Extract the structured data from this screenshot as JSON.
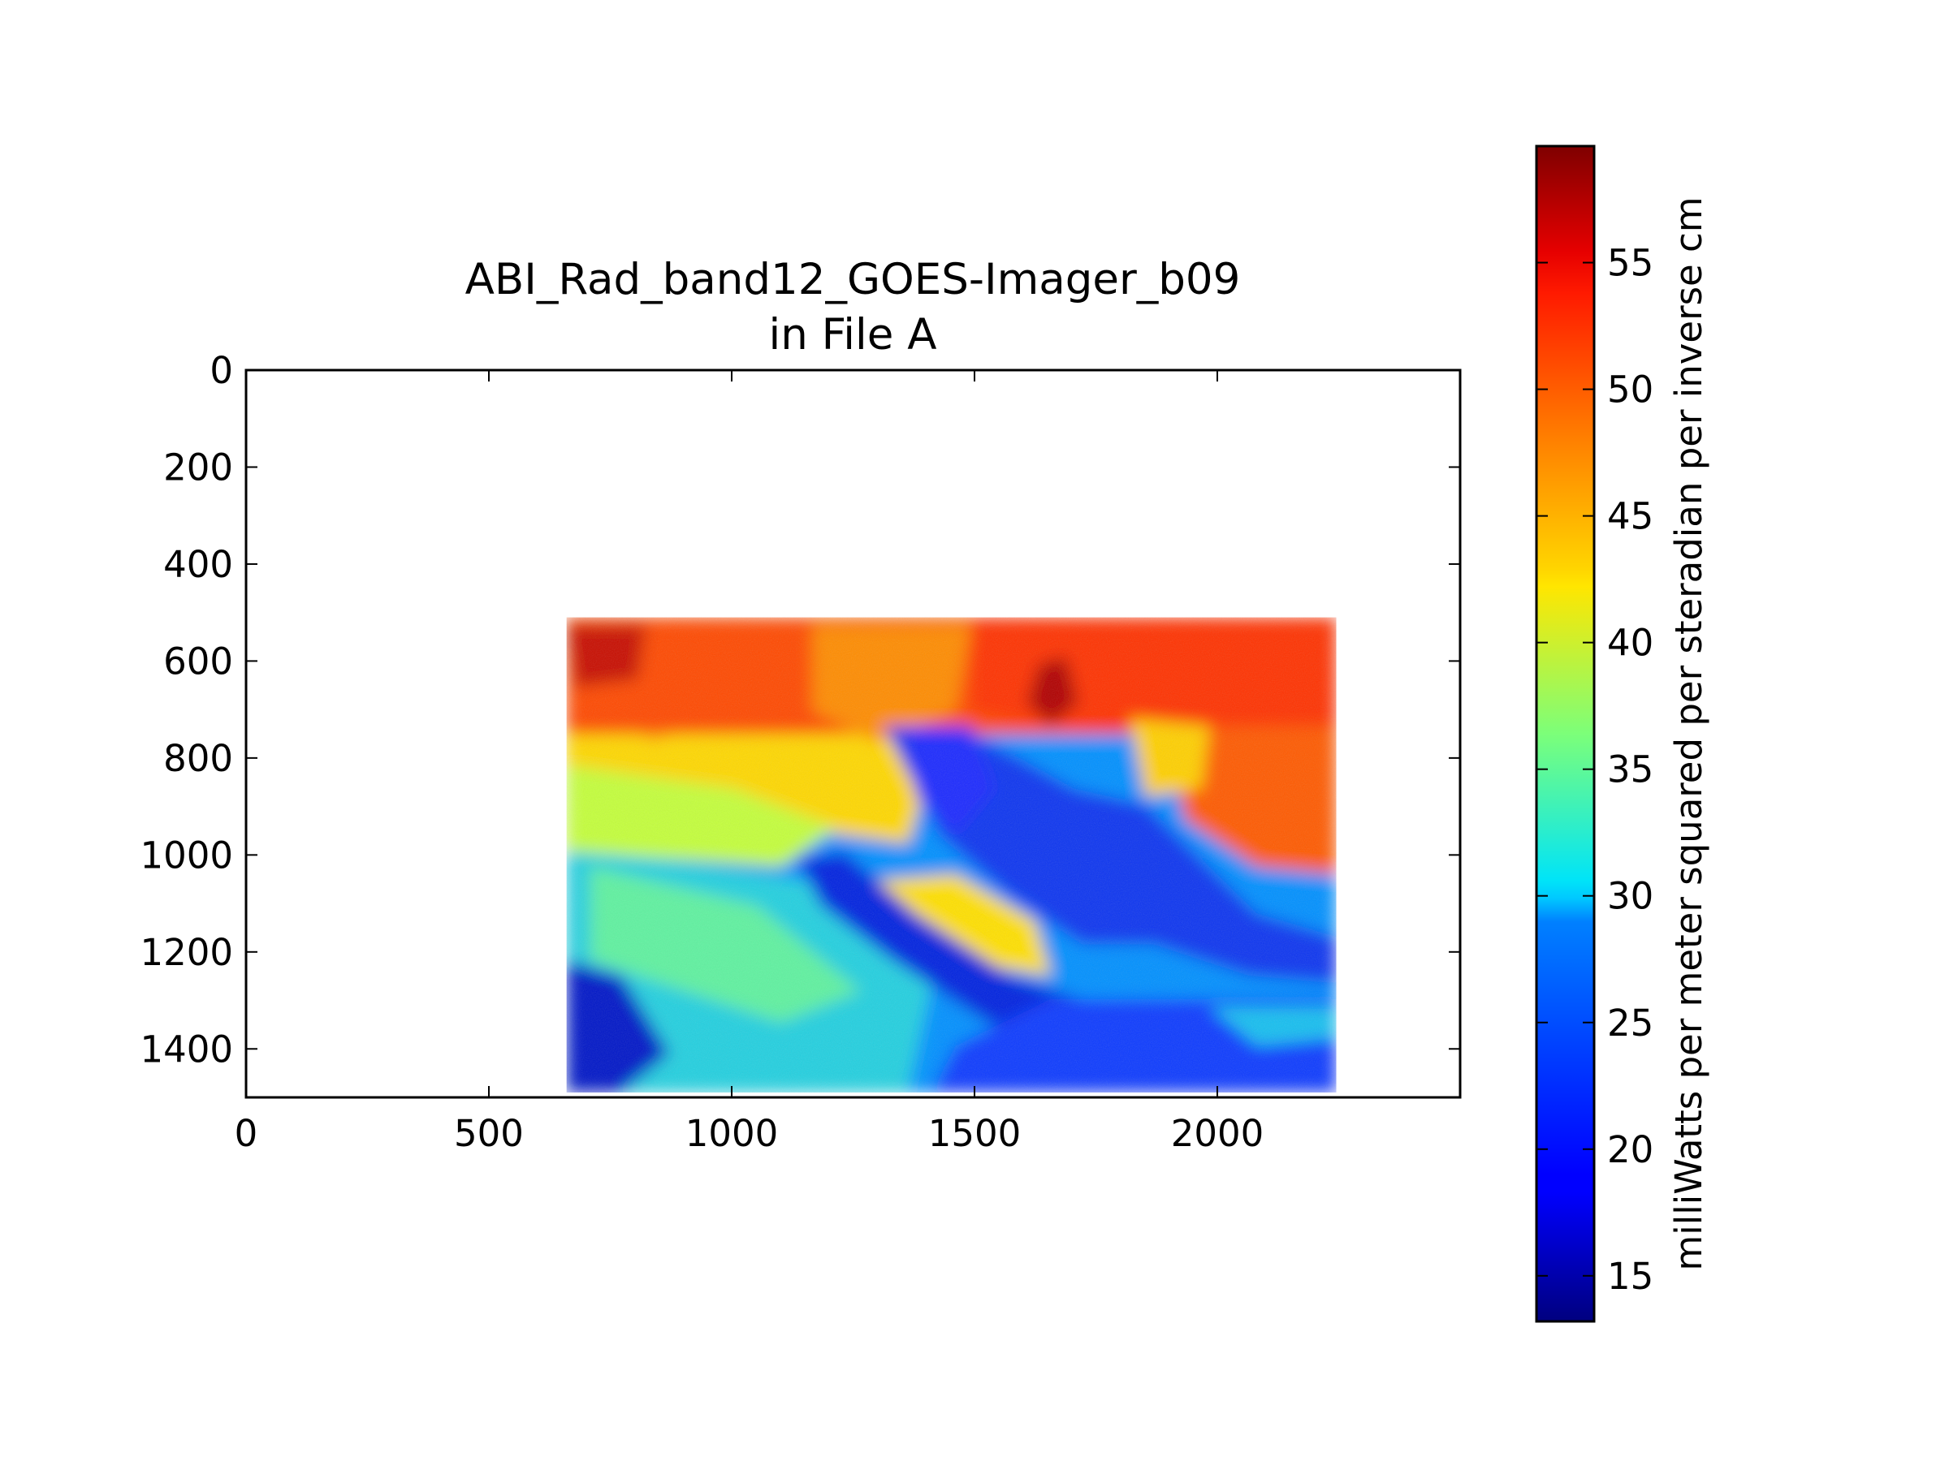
{
  "chart_data": {
    "type": "heatmap",
    "title_line1": "ABI_Rad_band12_GOES-Imager_b09",
    "title_line2": "in File A",
    "xlim": [
      0,
      2500
    ],
    "ylim": [
      1500,
      0
    ],
    "x_ticks": [
      "0",
      "500",
      "1000",
      "1500",
      "2000"
    ],
    "y_ticks": [
      "0",
      "200",
      "400",
      "600",
      "800",
      "1000",
      "1200",
      "1400"
    ],
    "image_extent": {
      "x": [
        660,
        2245
      ],
      "y": [
        510,
        1490
      ]
    },
    "colormap": "jet",
    "colorbar": {
      "label": "milliWatts per meter squared per steradian per inverse cm",
      "range": [
        13.2,
        59.6
      ],
      "ticks": [
        "15",
        "20",
        "25",
        "30",
        "35",
        "40",
        "45",
        "50",
        "55"
      ]
    },
    "grid": false,
    "field_regions": [
      {
        "description": "north band (rows ~510-640)",
        "value": 53
      },
      {
        "description": "west warm tongue",
        "value": 46
      },
      {
        "description": "comma cloud core",
        "value": 20
      },
      {
        "description": "south-west gradient",
        "value": 28
      },
      {
        "description": "south-east cold field",
        "value": 21
      }
    ]
  }
}
